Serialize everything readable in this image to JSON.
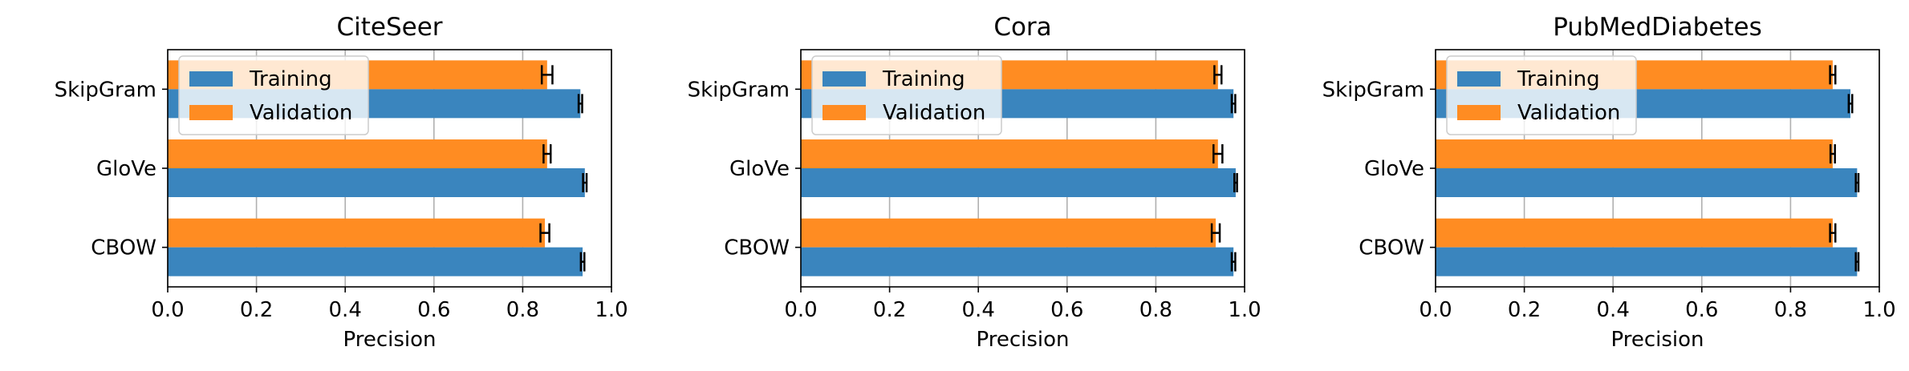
{
  "colors": {
    "training": "#3a85be",
    "validation": "#ff8c22",
    "grid": "#b0b0b0",
    "error_bar": "#000000"
  },
  "chart_data": [
    {
      "type": "bar",
      "orientation": "horizontal",
      "title": "CiteSeer",
      "xlabel": "Precision",
      "ylabel": "",
      "xlim": [
        0,
        1.0
      ],
      "x_ticks": [
        "0.0",
        "0.2",
        "0.4",
        "0.6",
        "0.8",
        "1.0"
      ],
      "categories": [
        "SkipGram",
        "GloVe",
        "CBOW"
      ],
      "grid": "x",
      "legend": {
        "position": "upper-left",
        "entries": [
          "Training",
          "Validation"
        ]
      },
      "series": [
        {
          "name": "Training",
          "values": [
            0.93,
            0.94,
            0.935
          ],
          "errors": [
            0.004,
            0.004,
            0.004
          ]
        },
        {
          "name": "Validation",
          "values": [
            0.855,
            0.855,
            0.85
          ],
          "errors": [
            0.012,
            0.008,
            0.01
          ]
        }
      ]
    },
    {
      "type": "bar",
      "orientation": "horizontal",
      "title": "Cora",
      "xlabel": "Precision",
      "ylabel": "",
      "xlim": [
        0,
        1.0
      ],
      "x_ticks": [
        "0.0",
        "0.2",
        "0.4",
        "0.6",
        "0.8",
        "1.0"
      ],
      "categories": [
        "SkipGram",
        "GloVe",
        "CBOW"
      ],
      "grid": "x",
      "legend": {
        "position": "upper-left",
        "entries": [
          "Training",
          "Validation"
        ]
      },
      "series": [
        {
          "name": "Training",
          "values": [
            0.975,
            0.98,
            0.975
          ],
          "errors": [
            0.004,
            0.003,
            0.004
          ]
        },
        {
          "name": "Validation",
          "values": [
            0.94,
            0.94,
            0.935
          ],
          "errors": [
            0.008,
            0.01,
            0.009
          ]
        }
      ]
    },
    {
      "type": "bar",
      "orientation": "horizontal",
      "title": "PubMedDiabetes",
      "xlabel": "Precision",
      "ylabel": "",
      "xlim": [
        0,
        1.0
      ],
      "x_ticks": [
        "0.0",
        "0.2",
        "0.4",
        "0.6",
        "0.8",
        "1.0"
      ],
      "categories": [
        "SkipGram",
        "GloVe",
        "CBOW"
      ],
      "grid": "x",
      "legend": {
        "position": "upper-left",
        "entries": [
          "Training",
          "Validation"
        ]
      },
      "series": [
        {
          "name": "Training",
          "values": [
            0.935,
            0.95,
            0.95
          ],
          "errors": [
            0.004,
            0.003,
            0.003
          ]
        },
        {
          "name": "Validation",
          "values": [
            0.895,
            0.895,
            0.895
          ],
          "errors": [
            0.006,
            0.005,
            0.006
          ]
        }
      ]
    }
  ]
}
